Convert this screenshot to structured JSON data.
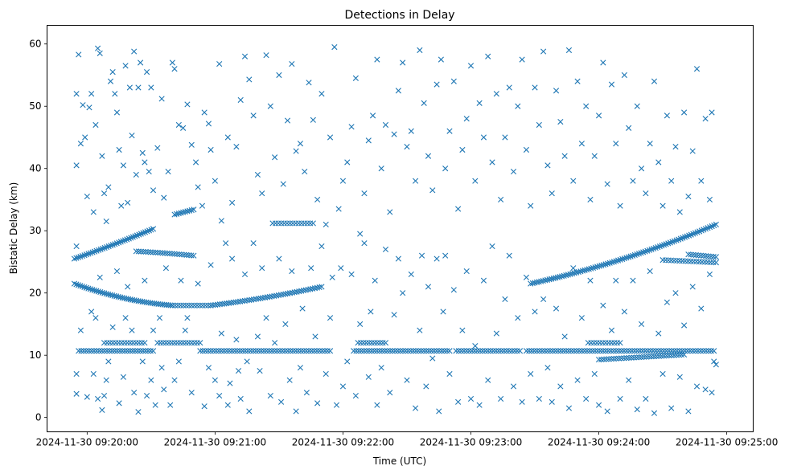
{
  "chart_data": {
    "type": "scatter",
    "title": "Detections in Delay",
    "xlabel": "Time (UTC)",
    "ylabel": "Bistatic Delay (km)",
    "x_units": "seconds after 2024-11-30 09:20:00",
    "xlim": [
      -18.8,
      312.4
    ],
    "ylim": [
      -2.3,
      63
    ],
    "grid": false,
    "marker": "x",
    "color": "#1f77b4",
    "x_ticks": [
      {
        "value": 0,
        "label": "2024-11-30 09:20:00"
      },
      {
        "value": 60,
        "label": "2024-11-30 09:21:00"
      },
      {
        "value": 120,
        "label": "2024-11-30 09:22:00"
      },
      {
        "value": 180,
        "label": "2024-11-30 09:23:00"
      },
      {
        "value": 240,
        "label": "2024-11-30 09:24:00"
      },
      {
        "value": 300,
        "label": "2024-11-30 09:25:00"
      }
    ],
    "y_ticks": [
      {
        "value": 0,
        "label": "0"
      },
      {
        "value": 10,
        "label": "10"
      },
      {
        "value": 20,
        "label": "20"
      },
      {
        "value": 30,
        "label": "30"
      },
      {
        "value": 40,
        "label": "40"
      },
      {
        "value": 50,
        "label": "50"
      },
      {
        "value": 60,
        "label": "60"
      }
    ],
    "track_segments": [
      {
        "t": [
          -6,
          31
        ],
        "d": [
          25.5,
          27.8,
          30.3
        ],
        "n": 40
      },
      {
        "t": [
          23,
          50
        ],
        "d": [
          26.7,
          26.4,
          26.0
        ],
        "n": 25
      },
      {
        "t": [
          41,
          50
        ],
        "d": [
          32.6,
          33.0,
          33.4
        ],
        "n": 10
      },
      {
        "t": [
          -6,
          40
        ],
        "d": [
          21.5,
          19.2,
          18.0
        ],
        "n": 50
      },
      {
        "t": [
          40,
          58
        ],
        "d": [
          18.0,
          18.0,
          18.0
        ],
        "n": 15
      },
      {
        "t": [
          58,
          110
        ],
        "d": [
          18.0,
          19.3,
          21.0
        ],
        "n": 50
      },
      {
        "t": [
          -4,
          31
        ],
        "d": [
          10.7,
          10.7,
          10.7
        ],
        "n": 30
      },
      {
        "t": [
          53,
          114
        ],
        "d": [
          10.7,
          10.7,
          10.7
        ],
        "n": 50
      },
      {
        "t": [
          125,
          170
        ],
        "d": [
          10.7,
          10.7,
          10.7
        ],
        "n": 38
      },
      {
        "t": [
          173,
          203
        ],
        "d": [
          10.7,
          10.7,
          10.7
        ],
        "n": 25
      },
      {
        "t": [
          206,
          294
        ],
        "d": [
          10.7,
          10.7,
          10.7
        ],
        "n": 72
      },
      {
        "t": [
          8,
          27
        ],
        "d": [
          12.0,
          12.0,
          12.0
        ],
        "n": 15
      },
      {
        "t": [
          33,
          53
        ],
        "d": [
          12.0,
          12.0,
          12.0
        ],
        "n": 16
      },
      {
        "t": [
          127,
          140
        ],
        "d": [
          12.0,
          12.0,
          12.0
        ],
        "n": 11
      },
      {
        "t": [
          235,
          250
        ],
        "d": [
          12.0,
          12.0,
          12.0
        ],
        "n": 12
      },
      {
        "t": [
          208,
          295
        ],
        "d": [
          21.5,
          25.5,
          31.0
        ],
        "n": 90
      },
      {
        "t": [
          270,
          295
        ],
        "d": [
          25.3,
          25.1,
          24.9
        ],
        "n": 20
      },
      {
        "t": [
          282,
          295
        ],
        "d": [
          26.2,
          26.0,
          25.8
        ],
        "n": 12
      },
      {
        "t": [
          87,
          106
        ],
        "d": [
          31.2,
          31.2,
          31.2
        ],
        "n": 15
      },
      {
        "t": [
          240,
          280
        ],
        "d": [
          9.3,
          9.7,
          10.1
        ],
        "n": 35
      }
    ],
    "points": [
      [
        -5,
        52
      ],
      [
        -5,
        40.5
      ],
      [
        -4,
        58.3
      ],
      [
        -3,
        44
      ],
      [
        -2,
        50.2
      ],
      [
        -1,
        45
      ],
      [
        0,
        35.5
      ],
      [
        1,
        49.8
      ],
      [
        2,
        52
      ],
      [
        3,
        33
      ],
      [
        4,
        47
      ],
      [
        5,
        59.3
      ],
      [
        6,
        58.5
      ],
      [
        7,
        42
      ],
      [
        8,
        36
      ],
      [
        9,
        31.5
      ],
      [
        10,
        37
      ],
      [
        11,
        54
      ],
      [
        12,
        55.5
      ],
      [
        13,
        52
      ],
      [
        14,
        49
      ],
      [
        15,
        43
      ],
      [
        16,
        34
      ],
      [
        17,
        40.5
      ],
      [
        18,
        56.5
      ],
      [
        19,
        34.5
      ],
      [
        20,
        53
      ],
      [
        21,
        45.3
      ],
      [
        22,
        58.8
      ],
      [
        23,
        39
      ],
      [
        24,
        53
      ],
      [
        25,
        57
      ],
      [
        26,
        42.5
      ],
      [
        27,
        41
      ],
      [
        28,
        55.5
      ],
      [
        29,
        39.5
      ],
      [
        30,
        53
      ],
      [
        31,
        36.5
      ],
      [
        33,
        43.3
      ],
      [
        35,
        51.2
      ],
      [
        36,
        35.3
      ],
      [
        38,
        39.5
      ],
      [
        40,
        57
      ],
      [
        41,
        56
      ],
      [
        43,
        47
      ],
      [
        45,
        46.5
      ],
      [
        47,
        50.3
      ],
      [
        49,
        43.8
      ],
      [
        51,
        41
      ],
      [
        52,
        37
      ],
      [
        54,
        34
      ],
      [
        55,
        49
      ],
      [
        57,
        47.2
      ],
      [
        58,
        43
      ],
      [
        60,
        38
      ],
      [
        62,
        56.8
      ],
      [
        63,
        31.6
      ],
      [
        65,
        28
      ],
      [
        66,
        45
      ],
      [
        68,
        34.5
      ],
      [
        70,
        43.5
      ],
      [
        72,
        51
      ],
      [
        74,
        58
      ],
      [
        76,
        54.3
      ],
      [
        78,
        48.5
      ],
      [
        80,
        39
      ],
      [
        82,
        36
      ],
      [
        84,
        58.2
      ],
      [
        86,
        50
      ],
      [
        88,
        41.8
      ],
      [
        90,
        55
      ],
      [
        92,
        37.5
      ],
      [
        94,
        47.7
      ],
      [
        96,
        56.8
      ],
      [
        98,
        42.8
      ],
      [
        100,
        44
      ],
      [
        102,
        39.5
      ],
      [
        104,
        53.8
      ],
      [
        106,
        47.8
      ],
      [
        108,
        35
      ],
      [
        110,
        52
      ],
      [
        112,
        31
      ],
      [
        114,
        45
      ],
      [
        116,
        59.5
      ],
      [
        118,
        33.5
      ],
      [
        120,
        38
      ],
      [
        122,
        41
      ],
      [
        124,
        46.7
      ],
      [
        126,
        54.5
      ],
      [
        128,
        29.5
      ],
      [
        130,
        36
      ],
      [
        132,
        44.5
      ],
      [
        134,
        48.5
      ],
      [
        136,
        57.5
      ],
      [
        138,
        40
      ],
      [
        140,
        47
      ],
      [
        142,
        33
      ],
      [
        144,
        45.5
      ],
      [
        146,
        52.5
      ],
      [
        148,
        57
      ],
      [
        150,
        43.5
      ],
      [
        152,
        46
      ],
      [
        154,
        38
      ],
      [
        156,
        59
      ],
      [
        158,
        50.5
      ],
      [
        160,
        42
      ],
      [
        162,
        36.5
      ],
      [
        164,
        53.5
      ],
      [
        166,
        57.5
      ],
      [
        168,
        40
      ],
      [
        170,
        46
      ],
      [
        172,
        54
      ],
      [
        174,
        33.5
      ],
      [
        176,
        43
      ],
      [
        178,
        48
      ],
      [
        180,
        56.5
      ],
      [
        182,
        38
      ],
      [
        184,
        50.5
      ],
      [
        186,
        45
      ],
      [
        188,
        58
      ],
      [
        190,
        41
      ],
      [
        192,
        52
      ],
      [
        194,
        35
      ],
      [
        196,
        45
      ],
      [
        198,
        53
      ],
      [
        200,
        39.5
      ],
      [
        202,
        50
      ],
      [
        204,
        57.5
      ],
      [
        206,
        43
      ],
      [
        208,
        34
      ],
      [
        210,
        53
      ],
      [
        212,
        47
      ],
      [
        214,
        58.8
      ],
      [
        216,
        40.5
      ],
      [
        218,
        36
      ],
      [
        220,
        52.5
      ],
      [
        222,
        47.5
      ],
      [
        224,
        42
      ],
      [
        226,
        59
      ],
      [
        228,
        38
      ],
      [
        230,
        54
      ],
      [
        232,
        44
      ],
      [
        234,
        50
      ],
      [
        236,
        35
      ],
      [
        238,
        42
      ],
      [
        240,
        48.5
      ],
      [
        242,
        57
      ],
      [
        244,
        37.5
      ],
      [
        246,
        53.5
      ],
      [
        248,
        44
      ],
      [
        250,
        34
      ],
      [
        252,
        55
      ],
      [
        254,
        46.5
      ],
      [
        256,
        38
      ],
      [
        258,
        50
      ],
      [
        260,
        40
      ],
      [
        262,
        36
      ],
      [
        264,
        44
      ],
      [
        266,
        54
      ],
      [
        268,
        41
      ],
      [
        270,
        34
      ],
      [
        272,
        48.5
      ],
      [
        274,
        38
      ],
      [
        276,
        43.5
      ],
      [
        278,
        33
      ],
      [
        280,
        49
      ],
      [
        282,
        35.5
      ],
      [
        284,
        42.8
      ],
      [
        286,
        56
      ],
      [
        288,
        38
      ],
      [
        290,
        48
      ],
      [
        292,
        35
      ],
      [
        293,
        49
      ],
      [
        -5,
        27.5
      ],
      [
        -5,
        7
      ],
      [
        -5,
        3.8
      ],
      [
        -3,
        14
      ],
      [
        0,
        3.3
      ],
      [
        2,
        17
      ],
      [
        3,
        7
      ],
      [
        4,
        16
      ],
      [
        5,
        3
      ],
      [
        6,
        22.5
      ],
      [
        7,
        1.2
      ],
      [
        8,
        3.5
      ],
      [
        9,
        6
      ],
      [
        10,
        9
      ],
      [
        12,
        14.5
      ],
      [
        14,
        23.5
      ],
      [
        15,
        2.3
      ],
      [
        17,
        6.5
      ],
      [
        18,
        16
      ],
      [
        19,
        21
      ],
      [
        21,
        14
      ],
      [
        22,
        4
      ],
      [
        24,
        0.9
      ],
      [
        26,
        9
      ],
      [
        27,
        22
      ],
      [
        28,
        3.5
      ],
      [
        30,
        6
      ],
      [
        31,
        14
      ],
      [
        32,
        2
      ],
      [
        34,
        16
      ],
      [
        35,
        8
      ],
      [
        36,
        4.5
      ],
      [
        37,
        24
      ],
      [
        39,
        2
      ],
      [
        41,
        6
      ],
      [
        43,
        9
      ],
      [
        44,
        22
      ],
      [
        46,
        14
      ],
      [
        47,
        16
      ],
      [
        49,
        4
      ],
      [
        52,
        21.5
      ],
      [
        55,
        1.8
      ],
      [
        57,
        8
      ],
      [
        58,
        24.5
      ],
      [
        60,
        6
      ],
      [
        62,
        3.5
      ],
      [
        63,
        13.5
      ],
      [
        66,
        2
      ],
      [
        67,
        5.5
      ],
      [
        68,
        25.5
      ],
      [
        70,
        12.5
      ],
      [
        71,
        7.5
      ],
      [
        72,
        3
      ],
      [
        74,
        23
      ],
      [
        75,
        9
      ],
      [
        76,
        1
      ],
      [
        78,
        28
      ],
      [
        80,
        13
      ],
      [
        81,
        7.5
      ],
      [
        82,
        24
      ],
      [
        84,
        16
      ],
      [
        86,
        3.5
      ],
      [
        88,
        12
      ],
      [
        90,
        25.5
      ],
      [
        91,
        2.5
      ],
      [
        93,
        15
      ],
      [
        95,
        6
      ],
      [
        96,
        23.5
      ],
      [
        98,
        1
      ],
      [
        100,
        8
      ],
      [
        101,
        17.5
      ],
      [
        103,
        4
      ],
      [
        105,
        24
      ],
      [
        107,
        13
      ],
      [
        108,
        2.3
      ],
      [
        110,
        27.5
      ],
      [
        112,
        7
      ],
      [
        114,
        16
      ],
      [
        115,
        22.5
      ],
      [
        117,
        2
      ],
      [
        119,
        24
      ],
      [
        120,
        5
      ],
      [
        122,
        9
      ],
      [
        124,
        23
      ],
      [
        126,
        3.5
      ],
      [
        128,
        15
      ],
      [
        130,
        28
      ],
      [
        132,
        6.5
      ],
      [
        133,
        17
      ],
      [
        135,
        22
      ],
      [
        136,
        2
      ],
      [
        138,
        8
      ],
      [
        140,
        27
      ],
      [
        142,
        4
      ],
      [
        144,
        16.5
      ],
      [
        146,
        25.5
      ],
      [
        148,
        20
      ],
      [
        150,
        6
      ],
      [
        152,
        23
      ],
      [
        154,
        1.5
      ],
      [
        156,
        14
      ],
      [
        157,
        26
      ],
      [
        159,
        5
      ],
      [
        160,
        21
      ],
      [
        162,
        9.5
      ],
      [
        164,
        25.5
      ],
      [
        165,
        1
      ],
      [
        167,
        17
      ],
      [
        168,
        26
      ],
      [
        170,
        7
      ],
      [
        172,
        20.5
      ],
      [
        174,
        2.5
      ],
      [
        176,
        14
      ],
      [
        178,
        23.5
      ],
      [
        180,
        3
      ],
      [
        182,
        11.5
      ],
      [
        184,
        2
      ],
      [
        186,
        22
      ],
      [
        188,
        6
      ],
      [
        190,
        27.5
      ],
      [
        192,
        13.5
      ],
      [
        194,
        3
      ],
      [
        196,
        19
      ],
      [
        198,
        26
      ],
      [
        200,
        5
      ],
      [
        202,
        16
      ],
      [
        204,
        2.5
      ],
      [
        206,
        22.5
      ],
      [
        208,
        7
      ],
      [
        210,
        17
      ],
      [
        212,
        3
      ],
      [
        214,
        19
      ],
      [
        216,
        8
      ],
      [
        218,
        2.5
      ],
      [
        220,
        17.5
      ],
      [
        222,
        5
      ],
      [
        224,
        13
      ],
      [
        226,
        1.5
      ],
      [
        228,
        24
      ],
      [
        230,
        6
      ],
      [
        232,
        16
      ],
      [
        234,
        3
      ],
      [
        236,
        22
      ],
      [
        238,
        7
      ],
      [
        240,
        2
      ],
      [
        242,
        18
      ],
      [
        244,
        1
      ],
      [
        246,
        14
      ],
      [
        248,
        22
      ],
      [
        250,
        3
      ],
      [
        252,
        17
      ],
      [
        254,
        6
      ],
      [
        256,
        22
      ],
      [
        258,
        1.3
      ],
      [
        260,
        15
      ],
      [
        262,
        3
      ],
      [
        264,
        23.5
      ],
      [
        266,
        0.7
      ],
      [
        268,
        13.5
      ],
      [
        270,
        7
      ],
      [
        272,
        18.5
      ],
      [
        274,
        1.5
      ],
      [
        276,
        20
      ],
      [
        278,
        6.5
      ],
      [
        280,
        14.8
      ],
      [
        282,
        1
      ],
      [
        284,
        21
      ],
      [
        286,
        5
      ],
      [
        288,
        17.5
      ],
      [
        290,
        4.5
      ],
      [
        292,
        23
      ],
      [
        293,
        4
      ],
      [
        294,
        9
      ],
      [
        295,
        8.5
      ]
    ]
  }
}
